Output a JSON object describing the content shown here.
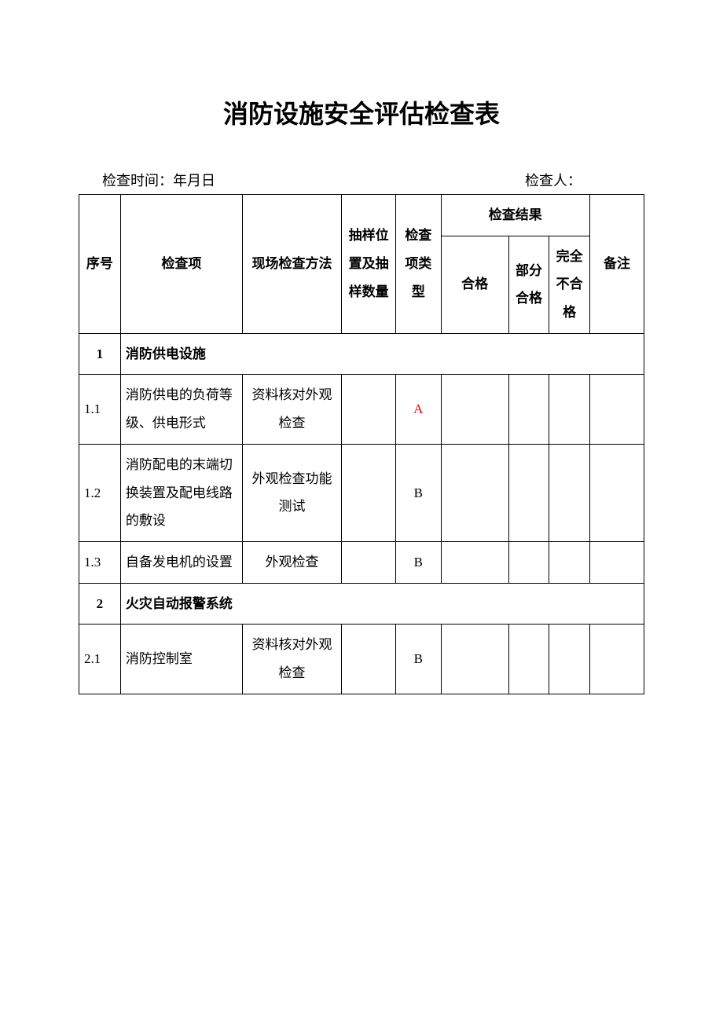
{
  "title": "消防设施安全评估检查表",
  "meta": {
    "time_label": "检查时间：年月日",
    "inspector_label": "检查人："
  },
  "headers": {
    "seq": "序号",
    "item": "检查项",
    "method": "现场检查方法",
    "sample": "抽样位置及抽样数量",
    "type": "检查项类型",
    "result": "检查结果",
    "pass": "合格",
    "partial": "部分合格",
    "fail": "完全不合格",
    "note": "备注"
  },
  "sections": [
    {
      "num": "1",
      "title": "消防供电设施",
      "rows": [
        {
          "num": "1.1",
          "item": "消防供电的负荷等级、供电形式",
          "method": "资料核对外观检查",
          "sample": "",
          "type": "A",
          "type_color": "#ff0000",
          "pass": "",
          "partial": "",
          "fail": "",
          "note": ""
        },
        {
          "num": "1.2",
          "item": "消防配电的末端切换装置及配电线路的敷设",
          "method": "外观检查功能测试",
          "sample": "",
          "type": "B",
          "type_color": "#000000",
          "pass": "",
          "partial": "",
          "fail": "",
          "note": ""
        },
        {
          "num": "1.3",
          "item": "自备发电机的设置",
          "method": "外观检查",
          "sample": "",
          "type": "B",
          "type_color": "#000000",
          "pass": "",
          "partial": "",
          "fail": "",
          "note": ""
        }
      ]
    },
    {
      "num": "2",
      "title": "火灾自动报警系统",
      "rows": [
        {
          "num": "2.1",
          "item": "消防控制室",
          "method": "资料核对外观检查",
          "sample": "",
          "type": "B",
          "type_color": "#000000",
          "pass": "",
          "partial": "",
          "fail": "",
          "note": ""
        }
      ]
    }
  ]
}
